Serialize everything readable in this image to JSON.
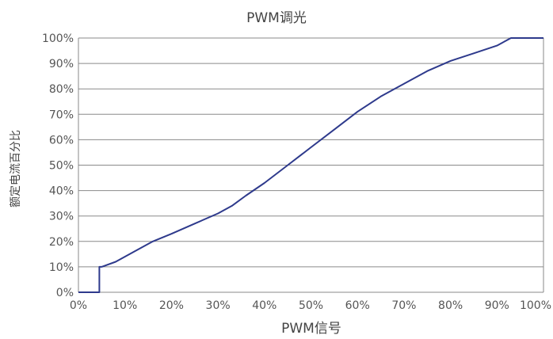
{
  "chart_data": {
    "type": "line",
    "title": "PWM调光",
    "xlabel": "PWM信号",
    "ylabel": "额定电流百分比",
    "x_ticks": [
      "0%",
      "10%",
      "20%",
      "30%",
      "40%",
      "50%",
      "60%",
      "70%",
      "80%",
      "90%",
      "100%"
    ],
    "y_ticks": [
      "0%",
      "10%",
      "20%",
      "30%",
      "40%",
      "50%",
      "60%",
      "70%",
      "80%",
      "90%",
      "100%"
    ],
    "xlim": [
      0,
      100
    ],
    "ylim": [
      0,
      100
    ],
    "grid": "horizontal",
    "series": [
      {
        "color": "#2e3a8c",
        "x": [
          0,
          4.5,
          4.5,
          5,
          8,
          12,
          16,
          20,
          25,
          30,
          33,
          36,
          40,
          45,
          50,
          55,
          60,
          65,
          70,
          75,
          80,
          85,
          90,
          93,
          100
        ],
        "y": [
          0,
          0,
          10,
          10,
          12,
          16,
          20,
          23,
          27,
          31,
          34,
          38,
          43,
          50,
          57,
          64,
          71,
          77,
          82,
          87,
          91,
          94,
          97,
          100,
          100
        ]
      }
    ]
  }
}
